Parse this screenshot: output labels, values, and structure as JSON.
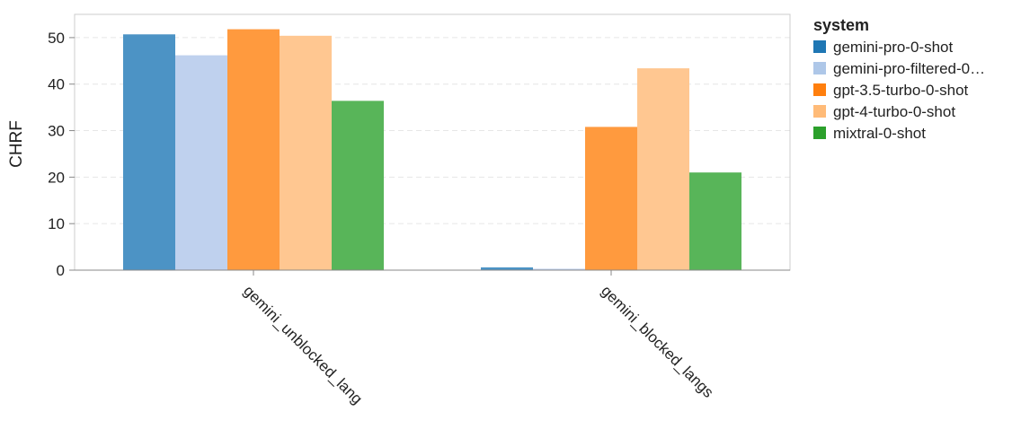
{
  "chart_data": {
    "type": "bar",
    "title": "",
    "xlabel": "",
    "ylabel": "CHRF",
    "ylim": [
      0,
      55
    ],
    "yticks": [
      0,
      10,
      20,
      30,
      40,
      50
    ],
    "grid": true,
    "legend_position": "right",
    "legend_title": "system",
    "categories": [
      "gemini_unblocked_lang",
      "gemini_blocked_langs"
    ],
    "series": [
      {
        "name": "gemini-pro-0-shot",
        "legend_label": "gemini-pro-0-shot",
        "color": "#4c93c5",
        "legend_color": "#1f77b4",
        "values": [
          50.7,
          0.6
        ]
      },
      {
        "name": "gemini-pro-filtered-0-shot",
        "legend_label": "gemini-pro-filtered-0…",
        "color": "#bfd1ee",
        "legend_color": "#aec7e8",
        "values": [
          46.2,
          0.3
        ]
      },
      {
        "name": "gpt-3.5-turbo-0-shot",
        "legend_label": "gpt-3.5-turbo-0-shot",
        "color": "#ff9a3e",
        "legend_color": "#ff7f0e",
        "values": [
          51.8,
          30.8
        ]
      },
      {
        "name": "gpt-4-turbo-0-shot",
        "legend_label": "gpt-4-turbo-0-shot",
        "color": "#ffc791",
        "legend_color": "#ffbb78",
        "values": [
          50.4,
          43.4
        ]
      },
      {
        "name": "mixtral-0-shot",
        "legend_label": "mixtral-0-shot",
        "color": "#58b559",
        "legend_color": "#2ca02c",
        "values": [
          36.4,
          21.0
        ]
      }
    ]
  }
}
